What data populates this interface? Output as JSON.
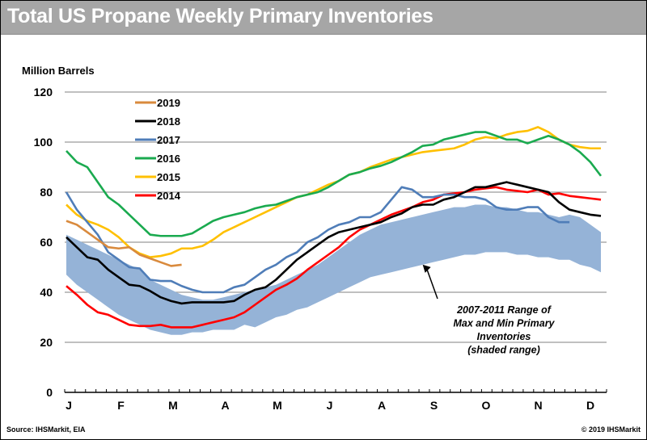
{
  "header": {
    "title": "Total US Propane Weekly Primary Inventories"
  },
  "footer": {
    "source": "Source: IHSMarkit, EIA",
    "copyright": "© 2019 IHSMarkit"
  },
  "chart_data": {
    "type": "line",
    "title": "Total US Propane Weekly Primary Inventories",
    "ylabel": "Million Barrels",
    "xlabel": "",
    "ylim": [
      0,
      120
    ],
    "yticks": [
      0,
      20,
      40,
      60,
      80,
      100,
      120
    ],
    "xlim": [
      1,
      52
    ],
    "x_unit": "week of year",
    "month_labels": [
      "J",
      "F",
      "M",
      "A",
      "M",
      "J",
      "A",
      "S",
      "O",
      "N",
      "D"
    ],
    "grid": "horizontal",
    "legend_position": "top-left",
    "range_band": {
      "name": "2007-2011 Range of Max and Min Primary Inventories (shaded range)",
      "color": "#95b3d7",
      "max": [
        63,
        61,
        59,
        57,
        55,
        53,
        51,
        49,
        45,
        43,
        41,
        39,
        38,
        37,
        37,
        38,
        39,
        40,
        41,
        42,
        43,
        45,
        47,
        49,
        51,
        54,
        57,
        60,
        63,
        65,
        67,
        68,
        69,
        70,
        71,
        72,
        73,
        74,
        74,
        75,
        75,
        74,
        74,
        73,
        72,
        72,
        71,
        70,
        71,
        70,
        67,
        64
      ],
      "min": [
        47,
        43,
        40,
        37,
        34,
        31,
        29,
        27,
        25,
        24,
        23,
        23,
        24,
        24,
        25,
        25,
        25,
        27,
        26,
        28,
        30,
        31,
        33,
        34,
        36,
        38,
        40,
        42,
        44,
        46,
        47,
        48,
        49,
        50,
        51,
        52,
        53,
        54,
        55,
        55,
        56,
        56,
        56,
        55,
        55,
        54,
        54,
        53,
        53,
        51,
        50,
        48
      ]
    },
    "annotation": {
      "lines": [
        "2007-2011 Range of",
        "Max and Min Primary",
        "Inventories",
        "(shaded range)"
      ],
      "arrow_target_week": 35,
      "arrow_target_value": 51
    },
    "series": [
      {
        "name": "2019",
        "color": "#d98a3d",
        "values": [
          68.5,
          67,
          64,
          61,
          58,
          57.5,
          58,
          55,
          53.5,
          52,
          50.5,
          51
        ]
      },
      {
        "name": "2018",
        "color": "#000000",
        "values": [
          62,
          58,
          54,
          53,
          49,
          46,
          43,
          42.5,
          40.5,
          38,
          36.5,
          35.5,
          36,
          36,
          36,
          36,
          36.5,
          39,
          41,
          42,
          45,
          49,
          53,
          56,
          59,
          62,
          64,
          65,
          66,
          67,
          68,
          70,
          71.5,
          74,
          75,
          75,
          77,
          78,
          80,
          82,
          82,
          83,
          84,
          83,
          82,
          81,
          80,
          76,
          73,
          72,
          71,
          70.5
        ],
        "end_week": 52
      },
      {
        "name": "2017",
        "color": "#4f7db8",
        "values": [
          80,
          73,
          68,
          63,
          56,
          53,
          50,
          49.5,
          45,
          44.5,
          44.5,
          42.5,
          41,
          40,
          40,
          40,
          42,
          43,
          46,
          49,
          51,
          54,
          56,
          60,
          62,
          65,
          67,
          68,
          70,
          70,
          72,
          77,
          82,
          81,
          78,
          78,
          79,
          79,
          78,
          78,
          77,
          74,
          73,
          73,
          74,
          74,
          70,
          68,
          68
        ],
        "note": "weekly values from week 1"
      },
      {
        "name": "2016",
        "color": "#1aaa4f",
        "values": [
          96.5,
          92,
          90,
          84,
          78,
          75,
          71,
          67,
          63,
          62.5,
          62.5,
          62.5,
          63.5,
          66,
          68.5,
          70,
          71,
          72,
          73.5,
          74.5,
          75,
          76.5,
          78,
          79,
          80,
          82,
          84.5,
          87,
          88,
          89.5,
          90.5,
          92,
          94,
          96,
          98.5,
          99,
          101,
          102,
          103,
          104,
          104,
          102.5,
          101,
          101,
          99.5,
          101,
          102.5,
          101,
          99,
          96,
          92,
          86.5
        ]
      },
      {
        "name": "2015",
        "color": "#ffc000",
        "values": [
          75,
          71,
          68.5,
          67,
          65,
          62,
          58,
          55.5,
          54,
          54.5,
          55.5,
          57.5,
          57.5,
          58.5,
          61,
          64,
          66,
          68,
          70,
          72,
          74,
          76,
          78,
          79,
          81,
          83,
          84.5,
          87,
          88,
          90,
          91.5,
          93,
          94,
          95,
          96,
          96.5,
          97,
          97.5,
          99,
          101,
          102,
          101.5,
          103,
          104,
          104.5,
          106,
          104,
          101,
          99,
          98,
          97.5,
          97.5
        ]
      },
      {
        "name": "2014",
        "color": "#ff0000",
        "values": [
          42.5,
          39,
          35,
          32,
          31,
          29,
          27,
          26.5,
          26.5,
          27,
          26,
          26,
          26,
          27,
          28,
          29,
          30,
          32,
          35,
          38,
          41,
          43,
          45.5,
          49,
          52,
          55,
          58,
          62,
          65,
          67,
          69,
          71,
          72.5,
          74,
          76,
          77,
          79,
          79.5,
          80,
          81,
          81.5,
          82,
          81,
          80.5,
          80,
          81,
          79,
          79.5,
          78.5,
          78,
          77.5,
          77
        ]
      }
    ]
  }
}
